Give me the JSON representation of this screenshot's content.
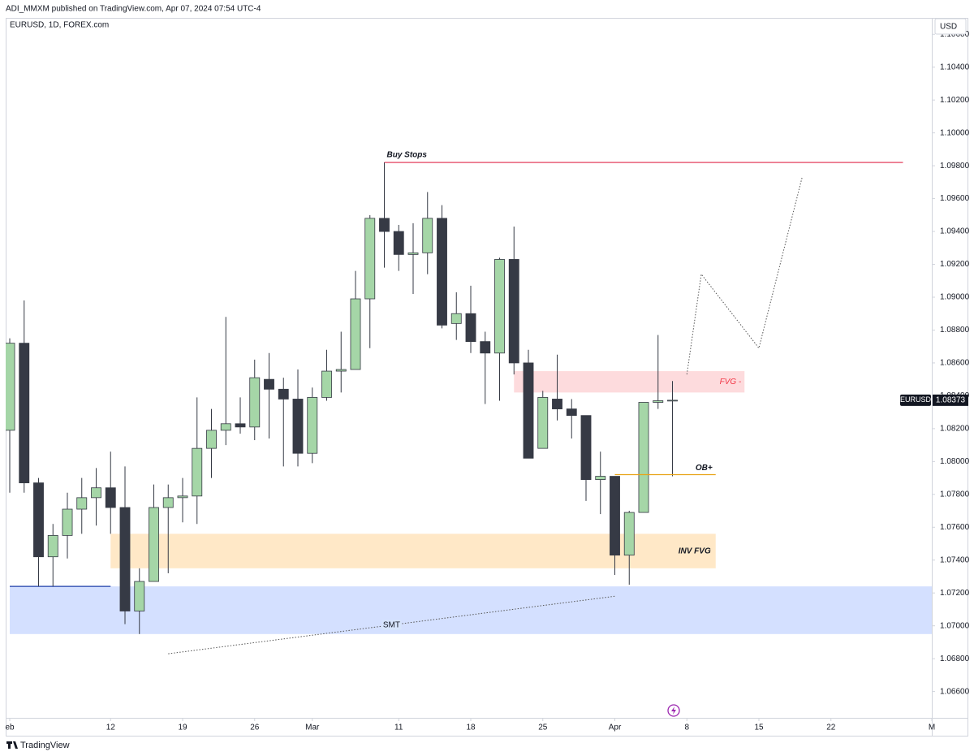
{
  "header": {
    "publisher": "ADI_MMXM published on TradingView.com, Apr 07, 2024 07:54 UTC-4",
    "footer": "TradingView"
  },
  "chart_data": {
    "type": "candlestick",
    "title": "EURUSD, 1D, FOREX.com",
    "y_unit": "USD",
    "up_color": "#a5d6a7",
    "down_color": "#363a45",
    "grid": false,
    "x": [
      "2024-02-01",
      "2024-02-02",
      "2024-02-05",
      "2024-02-06",
      "2024-02-07",
      "2024-02-08",
      "2024-02-09",
      "2024-02-12",
      "2024-02-13",
      "2024-02-14",
      "2024-02-15",
      "2024-02-16",
      "2024-02-19",
      "2024-02-20",
      "2024-02-21",
      "2024-02-22",
      "2024-02-23",
      "2024-02-26",
      "2024-02-27",
      "2024-02-28",
      "2024-02-29",
      "2024-03-01",
      "2024-03-04",
      "2024-03-05",
      "2024-03-06",
      "2024-03-07",
      "2024-03-08",
      "2024-03-11",
      "2024-03-12",
      "2024-03-13",
      "2024-03-14",
      "2024-03-15",
      "2024-03-18",
      "2024-03-19",
      "2024-03-20",
      "2024-03-21",
      "2024-03-22",
      "2024-03-25",
      "2024-03-26",
      "2024-03-27",
      "2024-03-28",
      "2024-03-29",
      "2024-04-01",
      "2024-04-02",
      "2024-04-03",
      "2024-04-04",
      "2024-04-05"
    ],
    "open": [
      1.0819,
      1.0872,
      1.0787,
      1.0742,
      1.0755,
      1.0771,
      1.0778,
      1.0784,
      1.0772,
      1.0709,
      1.0727,
      1.0772,
      1.0778,
      1.0779,
      1.0808,
      1.0819,
      1.0823,
      1.0821,
      1.085,
      1.0844,
      1.0838,
      1.0805,
      1.0839,
      1.0855,
      1.0856,
      1.0899,
      1.0948,
      1.094,
      1.0926,
      1.0927,
      1.0948,
      1.0884,
      1.089,
      1.0873,
      1.0866,
      1.0923,
      1.086,
      1.0808,
      1.0838,
      1.0832,
      1.0828,
      1.0789,
      1.0791,
      1.0743,
      1.0769,
      1.0836,
      1.0837
    ],
    "high": [
      1.0875,
      1.0898,
      1.079,
      1.0762,
      1.0781,
      1.079,
      1.0796,
      1.0806,
      1.0797,
      1.0735,
      1.0786,
      1.0786,
      1.079,
      1.0839,
      1.0832,
      1.0888,
      1.0839,
      1.0862,
      1.0866,
      1.0851,
      1.0856,
      1.0845,
      1.0868,
      1.0879,
      1.0916,
      1.095,
      1.0982,
      1.0944,
      1.0945,
      1.0964,
      1.0956,
      1.0903,
      1.0907,
      1.0879,
      1.0924,
      1.0943,
      1.0868,
      1.0843,
      1.0865,
      1.0838,
      1.0828,
      1.0806,
      1.0791,
      1.077,
      1.0836,
      1.0877,
      1.0849
    ],
    "low": [
      1.0781,
      1.0781,
      1.0724,
      1.0724,
      1.0741,
      1.0756,
      1.0761,
      1.0756,
      1.0701,
      1.0695,
      1.0727,
      1.0732,
      1.0763,
      1.0762,
      1.079,
      1.081,
      1.0817,
      1.0813,
      1.0814,
      1.0797,
      1.0797,
      1.0799,
      1.0837,
      1.0842,
      1.0856,
      1.0869,
      1.0918,
      1.0916,
      1.0902,
      1.0914,
      1.0881,
      1.0874,
      1.0866,
      1.0835,
      1.0837,
      1.0853,
      1.0802,
      1.0808,
      1.0825,
      1.0814,
      1.0776,
      1.0768,
      1.0731,
      1.0725,
      1.0769,
      1.0832,
      1.0791
    ],
    "close": [
      1.0872,
      1.0787,
      1.0742,
      1.0755,
      1.0771,
      1.0778,
      1.0784,
      1.0772,
      1.0709,
      1.0727,
      1.0772,
      1.0778,
      1.0779,
      1.0808,
      1.0819,
      1.0823,
      1.0821,
      1.0851,
      1.0844,
      1.0838,
      1.0805,
      1.0839,
      1.0855,
      1.0856,
      1.0899,
      1.0948,
      1.094,
      1.0926,
      1.0927,
      1.0948,
      1.0883,
      1.089,
      1.0873,
      1.0866,
      1.0923,
      1.086,
      1.0802,
      1.0839,
      1.0832,
      1.0828,
      1.0789,
      1.0791,
      1.0743,
      1.0769,
      1.0836,
      1.0837,
      1.08373
    ],
    "xlim": [
      "2024-02-01",
      "2024-05-01"
    ],
    "xticks": [
      {
        "value": "2024-02-01",
        "label": "eb"
      },
      {
        "value": "2024-02-12",
        "label": "12"
      },
      {
        "value": "2024-02-19",
        "label": "19"
      },
      {
        "value": "2024-02-26",
        "label": "26"
      },
      {
        "value": "2024-03-01",
        "label": "Mar"
      },
      {
        "value": "2024-03-11",
        "label": "11"
      },
      {
        "value": "2024-03-18",
        "label": "18"
      },
      {
        "value": "2024-03-25",
        "label": "25"
      },
      {
        "value": "2024-04-01",
        "label": "Apr"
      },
      {
        "value": "2024-04-08",
        "label": "8"
      },
      {
        "value": "2024-04-15",
        "label": "15"
      },
      {
        "value": "2024-04-22",
        "label": "22"
      },
      {
        "value": "2024-05-01",
        "label": "M"
      }
    ],
    "ylim": [
      1.0644,
      1.107
    ],
    "yticks": [
      {
        "value": 1.066,
        "label": "1.06600"
      },
      {
        "value": 1.068,
        "label": "1.06800"
      },
      {
        "value": 1.07,
        "label": "1.07000"
      },
      {
        "value": 1.072,
        "label": "1.07200"
      },
      {
        "value": 1.074,
        "label": "1.07400"
      },
      {
        "value": 1.076,
        "label": "1.07600"
      },
      {
        "value": 1.078,
        "label": "1.07800"
      },
      {
        "value": 1.08,
        "label": "1.08000"
      },
      {
        "value": 1.082,
        "label": "1.08200"
      },
      {
        "value": 1.084,
        "label": "1.08400"
      },
      {
        "value": 1.086,
        "label": "1.08600"
      },
      {
        "value": 1.088,
        "label": "1.08800"
      },
      {
        "value": 1.09,
        "label": "1.09000"
      },
      {
        "value": 1.092,
        "label": "1.09200"
      },
      {
        "value": 1.094,
        "label": "1.09400"
      },
      {
        "value": 1.096,
        "label": "1.09600"
      },
      {
        "value": 1.098,
        "label": "1.09800"
      },
      {
        "value": 1.1,
        "label": "1.10000"
      },
      {
        "value": 1.102,
        "label": "1.10200"
      },
      {
        "value": 1.104,
        "label": "1.10400"
      },
      {
        "value": 1.106,
        "label": "1.10600"
      }
    ],
    "last_price": {
      "symbol": "EURUSD",
      "value": 1.08373,
      "label": "1.08373"
    },
    "annotations": {
      "liquidity": {
        "low": 1.0695,
        "high": 1.0724,
        "from": "2024-02-01",
        "to": "2024-05-01",
        "color": "#2962ff"
      },
      "low_line": {
        "price": 1.0724,
        "from": "2024-02-01",
        "to": "2024-02-12",
        "color": "#1e3fa8"
      },
      "inv_fvg": {
        "label": "INV FVG",
        "low": 1.0735,
        "high": 1.0756,
        "from": "2024-02-12",
        "to": "2024-04-10",
        "color": "#ff9800"
      },
      "fvg": {
        "label": "FVG -",
        "low": 1.0842,
        "high": 1.0855,
        "from": "2024-03-21",
        "to": "2024-04-12",
        "color": "#f23645"
      },
      "buy_stops": {
        "label": "Buy Stops",
        "price": 1.0982,
        "from": "2024-03-08",
        "to": "2024-04-29",
        "color": "#e0284a"
      },
      "ob": {
        "label": "OB+",
        "price": 1.0792,
        "from": "2024-04-01",
        "to": "2024-04-10",
        "color": "#e8a317"
      },
      "smt": {
        "label": "SMT",
        "points": [
          [
            "2024-02-16",
            1.0683
          ],
          [
            "2024-04-01",
            1.0718
          ]
        ]
      },
      "projection": {
        "points": [
          [
            "2024-04-08",
            1.0853
          ],
          [
            "2024-04-09",
            1.0914
          ],
          [
            "2024-04-15",
            1.0869
          ],
          [
            "2024-04-18",
            1.0973
          ]
        ]
      }
    }
  }
}
